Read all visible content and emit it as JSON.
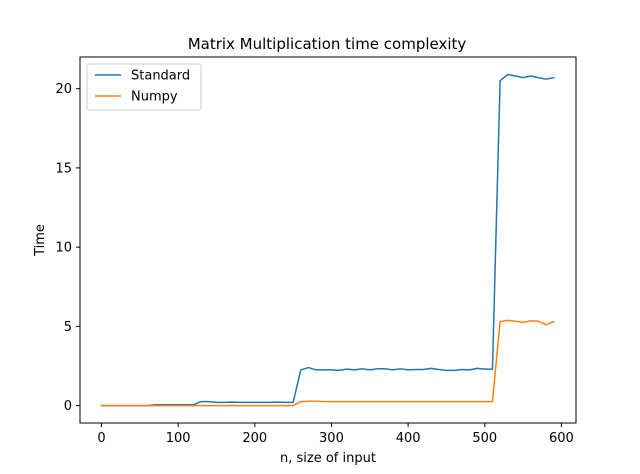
{
  "chart_data": {
    "type": "line",
    "title": "Matrix Multiplication time complexity",
    "xlabel": "n, size of input",
    "ylabel": "Time",
    "xlim": [
      -28,
      619
    ],
    "ylim": [
      -1.1,
      22.0
    ],
    "xticks": [
      0,
      100,
      200,
      300,
      400,
      500,
      600
    ],
    "yticks": [
      0,
      5,
      10,
      15,
      20
    ],
    "legend_position": "top-left",
    "grid": false,
    "x": [
      0,
      10,
      20,
      30,
      40,
      50,
      60,
      70,
      80,
      90,
      100,
      110,
      120,
      130,
      140,
      150,
      160,
      170,
      180,
      190,
      200,
      210,
      220,
      230,
      240,
      250,
      260,
      270,
      280,
      290,
      300,
      310,
      320,
      330,
      340,
      350,
      360,
      370,
      380,
      390,
      400,
      410,
      420,
      430,
      440,
      450,
      460,
      470,
      480,
      490,
      500,
      510,
      520,
      530,
      540,
      550,
      560,
      570,
      580,
      590
    ],
    "series": [
      {
        "name": "Standard",
        "color": "#1f77b4",
        "values": [
          0.0,
          0.0,
          0.0,
          0.0,
          0.0,
          0.0,
          0.0,
          0.05,
          0.05,
          0.05,
          0.05,
          0.05,
          0.05,
          0.25,
          0.25,
          0.2,
          0.2,
          0.22,
          0.2,
          0.2,
          0.2,
          0.2,
          0.2,
          0.22,
          0.2,
          0.2,
          2.25,
          2.4,
          2.25,
          2.25,
          2.25,
          2.22,
          2.3,
          2.25,
          2.32,
          2.25,
          2.32,
          2.32,
          2.25,
          2.32,
          2.25,
          2.28,
          2.28,
          2.35,
          2.28,
          2.22,
          2.22,
          2.28,
          2.25,
          2.35,
          2.3,
          2.3,
          20.5,
          20.9,
          20.8,
          20.7,
          20.8,
          20.7,
          20.6,
          20.7
        ]
      },
      {
        "name": "Numpy",
        "color": "#ff7f0e",
        "values": [
          0.0,
          0.0,
          0.0,
          0.0,
          0.0,
          0.0,
          0.0,
          0.0,
          0.0,
          0.0,
          0.0,
          0.0,
          0.0,
          0.0,
          0.0,
          0.0,
          0.0,
          0.0,
          0.0,
          0.0,
          0.0,
          0.0,
          0.0,
          0.0,
          0.0,
          0.0,
          0.25,
          0.27,
          0.27,
          0.25,
          0.25,
          0.25,
          0.25,
          0.25,
          0.25,
          0.25,
          0.25,
          0.25,
          0.25,
          0.25,
          0.25,
          0.25,
          0.25,
          0.25,
          0.25,
          0.25,
          0.25,
          0.25,
          0.25,
          0.25,
          0.25,
          0.25,
          5.3,
          5.38,
          5.32,
          5.25,
          5.35,
          5.32,
          5.1,
          5.3
        ]
      }
    ]
  }
}
